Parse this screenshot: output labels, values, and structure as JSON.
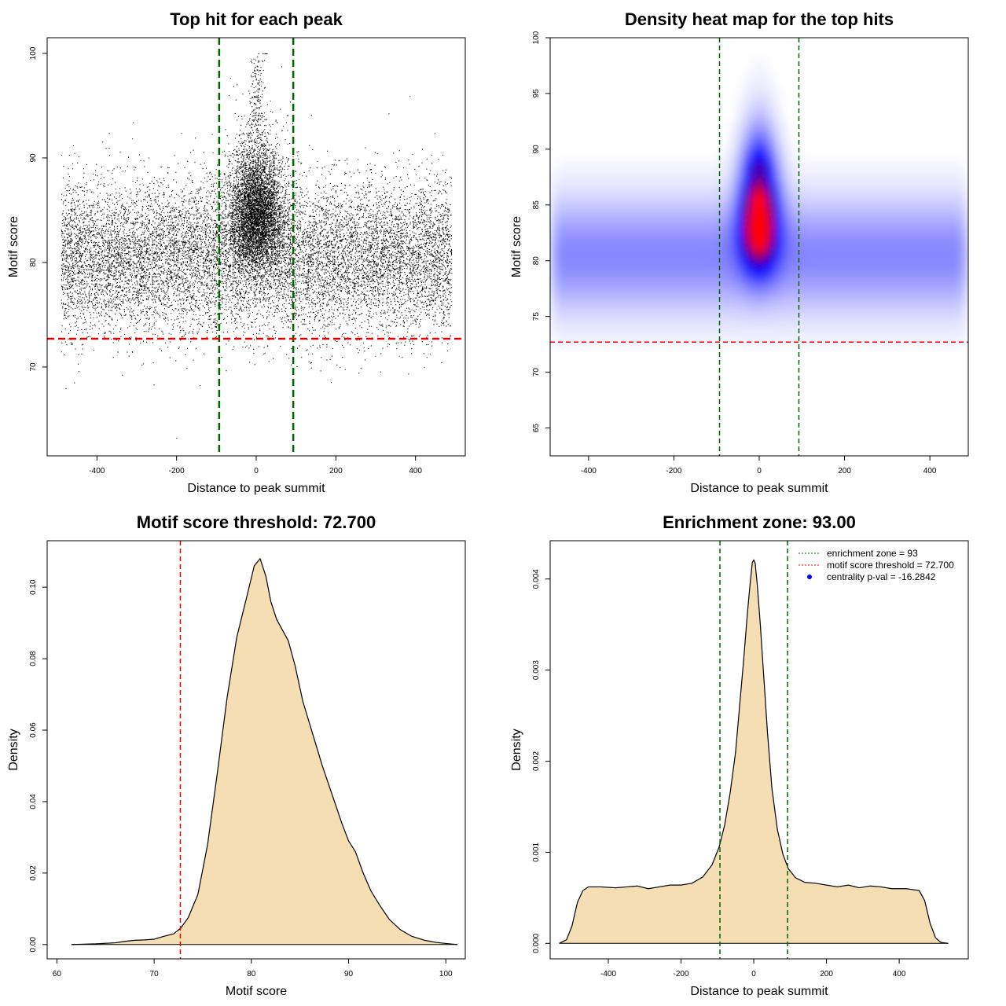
{
  "chart_data": [
    {
      "type": "scatter",
      "title": "Top hit for each peak",
      "xlabel": "Distance to peak summit",
      "ylabel": "Motif score",
      "xlim": [
        -525,
        525
      ],
      "ylim": [
        61.5,
        101.5
      ],
      "xticks": [
        -400,
        -200,
        0,
        200,
        400
      ],
      "yticks": [
        70,
        80,
        90,
        100
      ],
      "vlines": [
        -93,
        93
      ],
      "hline": 72.7,
      "point_count": 20000,
      "background_mean_score": 80.5,
      "central_peak_score": 100
    },
    {
      "type": "heatmap",
      "title": "Density heat map for the top hits",
      "xlabel": "Distance to peak summit",
      "ylabel": "Motif score",
      "xlim": [
        -490,
        490
      ],
      "ylim": [
        62.5,
        100
      ],
      "xticks": [
        -400,
        -200,
        0,
        200,
        400
      ],
      "yticks": [
        65,
        70,
        75,
        80,
        85,
        90,
        95,
        100
      ],
      "vlines": [
        -93,
        93
      ],
      "hline": 72.7,
      "hotspot": {
        "x": 0,
        "y": 83.5
      },
      "colors": [
        "#ffffff",
        "#0000ff",
        "#ff0000"
      ]
    },
    {
      "type": "area",
      "title": "Motif score threshold: 72.700",
      "xlabel": "Motif score",
      "ylabel": "Density",
      "xlim": [
        59,
        102
      ],
      "ylim": [
        -0.004,
        0.113
      ],
      "xticks": [
        60,
        70,
        80,
        90,
        100
      ],
      "yticks": [
        0.0,
        0.02,
        0.04,
        0.06,
        0.08,
        0.1
      ],
      "ytick_labels": [
        "0.00",
        "0.02",
        "0.04",
        "0.06",
        "0.08",
        "0.10"
      ],
      "vline": 72.7,
      "fill": "#f5deb3",
      "x": [
        61.5,
        64,
        66,
        67,
        68,
        69,
        70,
        71,
        72,
        72.7,
        73.5,
        74.5,
        75.5,
        76.5,
        77.5,
        78.5,
        79.5,
        80.3,
        80.9,
        81.5,
        82,
        82.6,
        83.2,
        83.8,
        84.5,
        85.3,
        86.3,
        87.3,
        88.3,
        89.3,
        90,
        90.7,
        91.5,
        92.3,
        93.2,
        94.2,
        95.3,
        96.5,
        97.8,
        99,
        100,
        101.2
      ],
      "y": [
        0.0,
        0.0002,
        0.0005,
        0.0009,
        0.0012,
        0.0013,
        0.0015,
        0.0023,
        0.003,
        0.0045,
        0.0075,
        0.014,
        0.028,
        0.048,
        0.069,
        0.086,
        0.097,
        0.106,
        0.108,
        0.103,
        0.096,
        0.091,
        0.088,
        0.085,
        0.078,
        0.068,
        0.059,
        0.05,
        0.042,
        0.034,
        0.029,
        0.026,
        0.02,
        0.015,
        0.011,
        0.007,
        0.0042,
        0.0023,
        0.0012,
        0.0006,
        0.0003,
        0.0
      ]
    },
    {
      "type": "area",
      "title": "Enrichment zone: 93.00",
      "xlabel": "Distance to peak summit",
      "ylabel": "Density",
      "xlim": [
        -560,
        590
      ],
      "ylim": [
        -0.00017,
        0.00442
      ],
      "xticks": [
        -400,
        -200,
        0,
        200,
        400
      ],
      "yticks": [
        0.0,
        0.001,
        0.002,
        0.003,
        0.004
      ],
      "ytick_labels": [
        "0.000",
        "0.001",
        "0.002",
        "0.003",
        "0.004"
      ],
      "vlines": [
        -93,
        93
      ],
      "fill": "#f5deb3",
      "x": [
        -535,
        -515,
        -500,
        -485,
        -470,
        -455,
        -420,
        -380,
        -350,
        -320,
        -290,
        -260,
        -230,
        -200,
        -170,
        -140,
        -115,
        -95,
        -80,
        -65,
        -50,
        -38,
        -28,
        -18,
        -10,
        -4,
        0,
        4,
        10,
        18,
        28,
        38,
        50,
        65,
        80,
        95,
        115,
        140,
        170,
        200,
        230,
        260,
        290,
        320,
        350,
        380,
        420,
        455,
        470,
        485,
        500,
        515,
        535
      ],
      "y": [
        0.0,
        4e-05,
        0.00019,
        0.00045,
        0.00058,
        0.00062,
        0.00062,
        0.00061,
        0.00062,
        0.00063,
        0.0006,
        0.00062,
        0.00064,
        0.00064,
        0.00066,
        0.00073,
        0.00086,
        0.00106,
        0.0013,
        0.00165,
        0.0021,
        0.00265,
        0.0031,
        0.0036,
        0.00395,
        0.00418,
        0.00421,
        0.00417,
        0.00392,
        0.0035,
        0.0029,
        0.0023,
        0.0017,
        0.00125,
        0.00098,
        0.00082,
        0.00072,
        0.00067,
        0.00066,
        0.00064,
        0.00062,
        0.00064,
        0.00061,
        0.00063,
        0.00062,
        0.0006,
        0.0006,
        0.00058,
        0.00047,
        0.00022,
        6e-05,
        1e-05,
        0.0
      ],
      "legend": {
        "position": "top-right",
        "entries": [
          {
            "label": "enrichment zone = 93",
            "style": "dotted",
            "color": "#006400"
          },
          {
            "label": "motif score threshold = 72.700",
            "style": "dotted",
            "color": "#ff0000"
          },
          {
            "label": "centrality p-val = -16.2842",
            "style": "point",
            "color": "#0000ff"
          }
        ]
      }
    }
  ]
}
